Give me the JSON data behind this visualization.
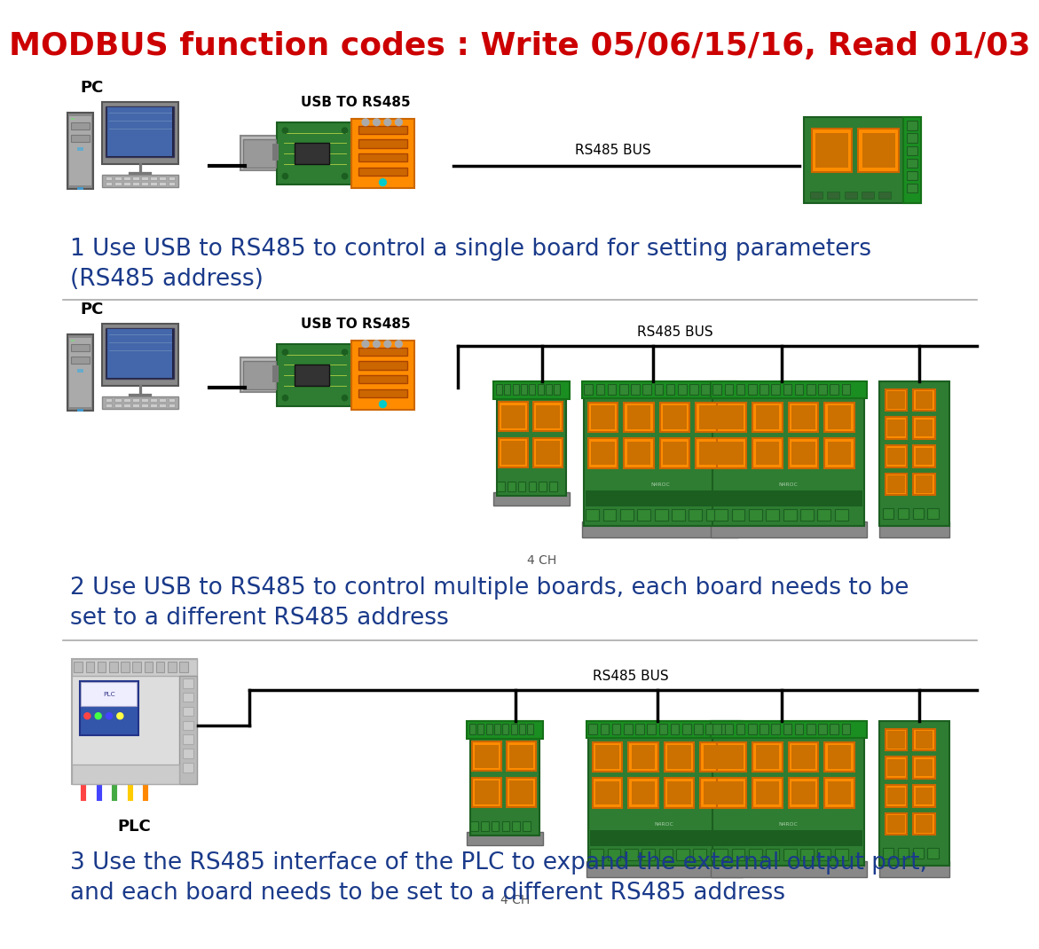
{
  "title": "MODBUS function codes : Write 05/06/15/16, Read 01/03",
  "title_color": "#CC0000",
  "title_fontsize": 26,
  "bg_color": "#FFFFFF",
  "section1_caption_line1": "1 Use USB to RS485 to control a single board for setting parameters",
  "section1_caption_line2": "(RS485 address)",
  "section2_caption_line1": "2 Use USB to RS485 to control multiple boards, each board needs to be",
  "section2_caption_line2": "set to a different RS485 address",
  "section3_caption_line1": "3 Use the RS485 interface of the PLC to expand the external output port,",
  "section3_caption_line2": "and each board needs to be set to a different RS485 address",
  "caption_color": "#1a3a8a",
  "caption_fontsize": 19,
  "label_pc": "PC",
  "label_usb_rs485": "USB TO RS485",
  "label_rs485_bus1": "RS485 BUS",
  "label_rs485_bus2": "RS485 BUS",
  "label_rs485_bus3": "RS485 BUS",
  "label_4ch1": "4 CH",
  "label_4ch2": "4 CH",
  "label_plc": "PLC",
  "label_fontsize": 11,
  "line_color": "#000000",
  "divider_color": "#AAAAAA"
}
